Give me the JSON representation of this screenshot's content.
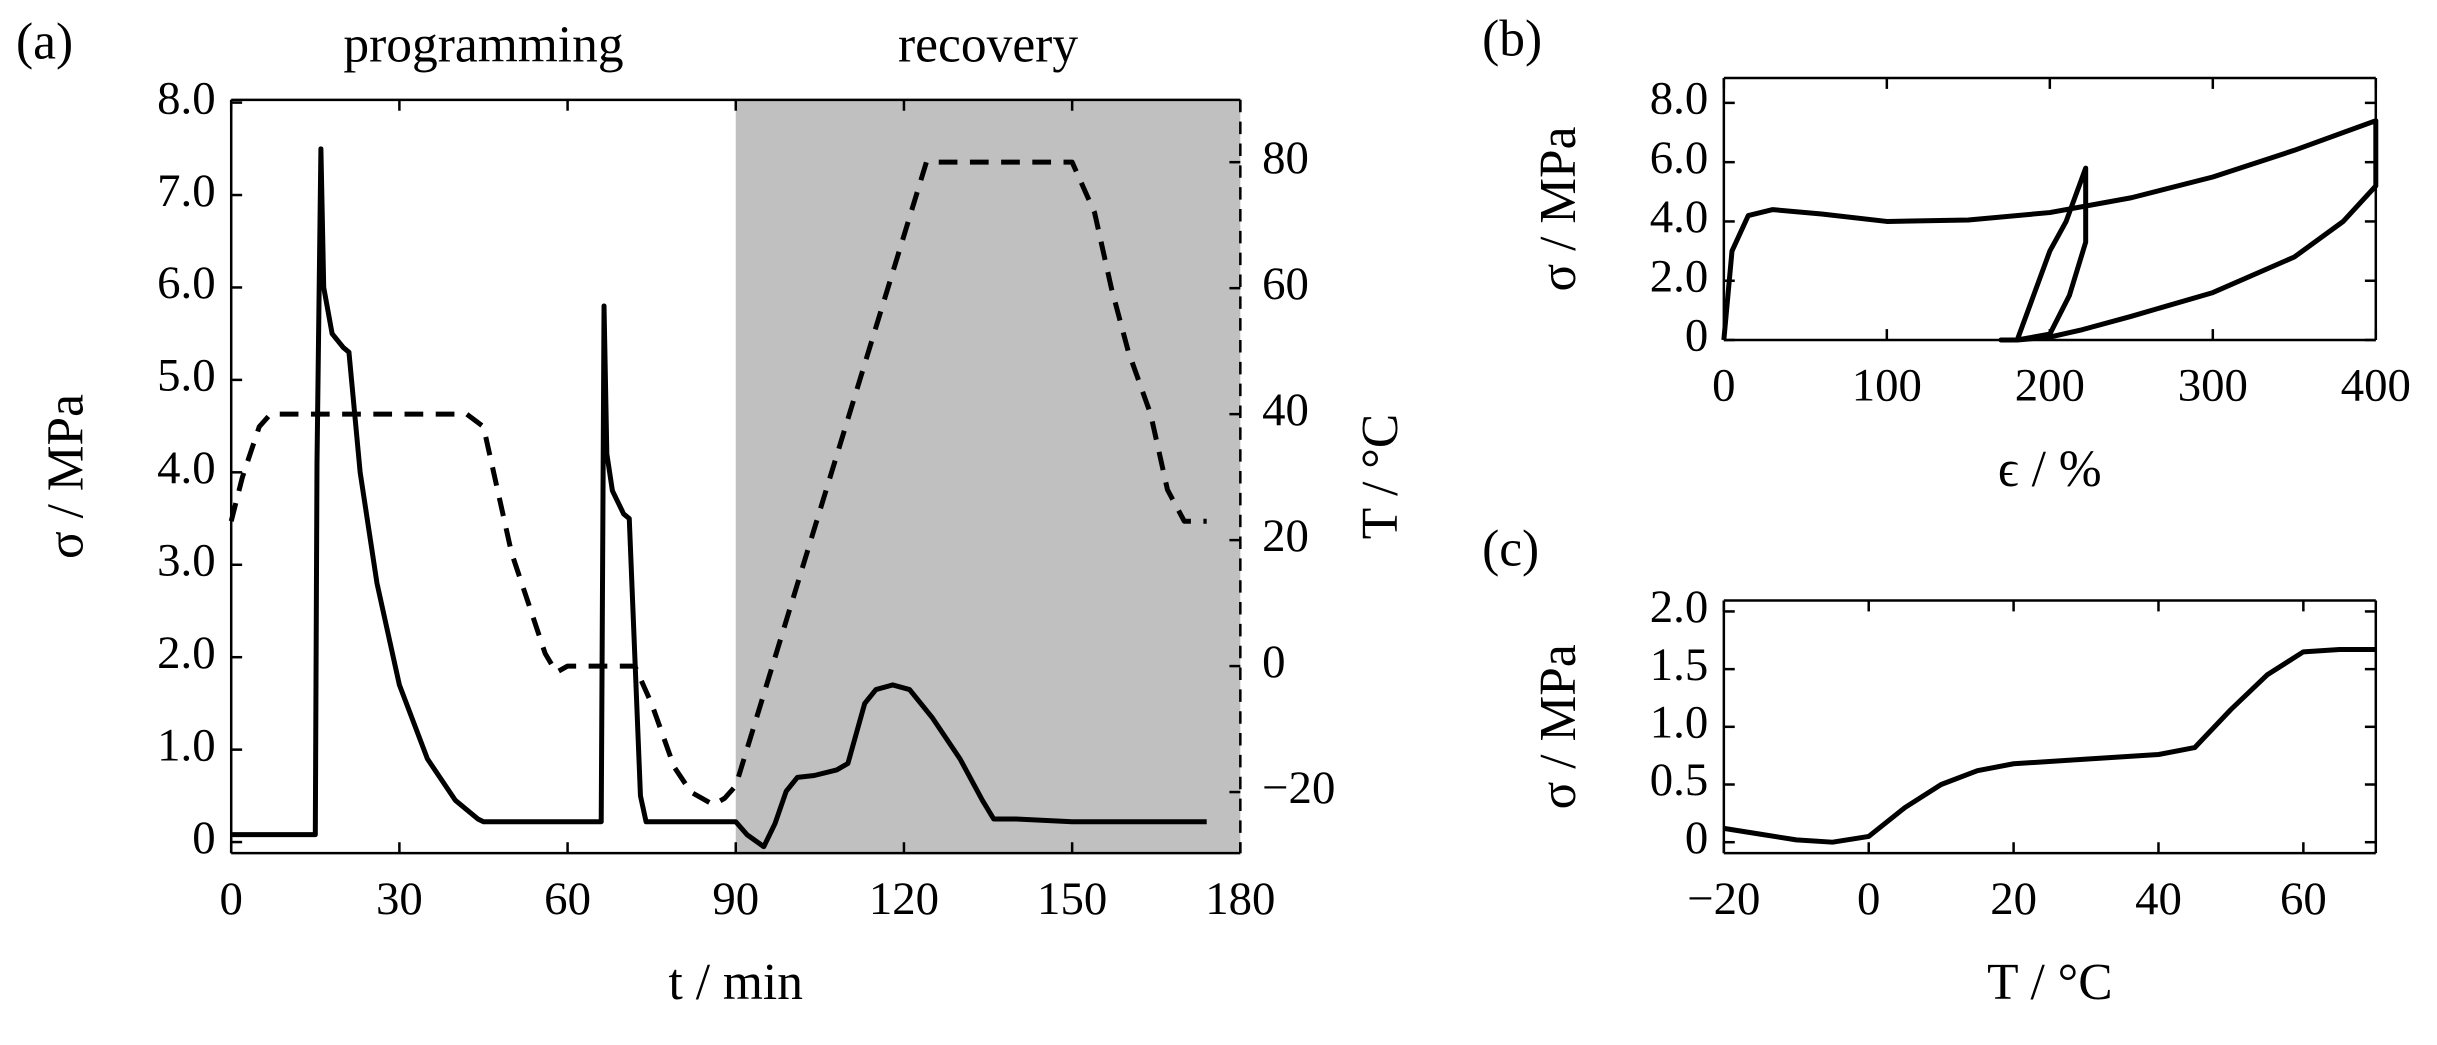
{
  "chart_data": [
    {
      "type": "line",
      "panel_label": "(a)",
      "annotations": [
        "programming",
        "recovery"
      ],
      "shaded_xrange": [
        90,
        180
      ],
      "shade_color": "#c0c0c0",
      "xlabel": "t / min",
      "ylabel": "σ / MPa",
      "y2label": "T / °C",
      "xlim": [
        0,
        180
      ],
      "xticks": [
        0,
        30,
        60,
        90,
        120,
        150,
        180
      ],
      "ylim": [
        -0.12,
        8.03
      ],
      "yticks": [
        0,
        {
          "value": 1,
          "label": "1.0"
        },
        {
          "value": 2,
          "label": "2.0"
        },
        {
          "value": 3,
          "label": "3.0"
        },
        {
          "value": 4,
          "label": "4.0"
        },
        {
          "value": 5,
          "label": "5.0"
        },
        {
          "value": 6,
          "label": "6.0"
        },
        {
          "value": 7,
          "label": "7.0"
        },
        {
          "value": 8,
          "label": "8.0"
        }
      ],
      "y2lim": [
        -29.7,
        89.9
      ],
      "y2ticks": [
        {
          "value": -20,
          "label": "−20"
        },
        0,
        20,
        40,
        60,
        80
      ],
      "series": [
        {
          "color": "#000000",
          "dashed": false,
          "x": [
            0,
            15,
            15.3,
            16,
            16.5,
            18,
            20,
            21,
            23,
            26,
            30,
            35,
            40,
            44,
            45,
            66,
            66.5,
            67,
            68,
            70,
            71,
            72,
            73,
            74,
            90,
            92,
            95,
            97,
            99,
            101,
            104,
            108,
            110,
            113,
            115,
            118,
            121,
            125,
            130,
            134,
            136,
            140,
            150,
            174
          ],
          "values": [
            0.08,
            0.08,
            4.1,
            7.5,
            6.0,
            5.5,
            5.35,
            5.3,
            4.0,
            2.8,
            1.7,
            0.9,
            0.45,
            0.25,
            0.22,
            0.22,
            5.8,
            4.2,
            3.8,
            3.55,
            3.5,
            2.0,
            0.5,
            0.22,
            0.22,
            0.08,
            -0.05,
            0.2,
            0.55,
            0.7,
            0.72,
            0.78,
            0.85,
            1.5,
            1.65,
            1.7,
            1.65,
            1.35,
            0.9,
            0.45,
            0.25,
            0.25,
            0.22,
            0.22
          ]
        },
        {
          "color": "#000000",
          "dashed": true,
          "axis": "y2",
          "x": [
            0,
            2,
            5,
            7,
            42,
            45,
            47,
            50,
            53,
            56,
            58,
            60,
            65,
            72,
            75,
            79,
            82,
            86,
            88,
            90,
            124,
            150,
            154,
            157,
            160,
            164,
            167,
            170,
            174
          ],
          "values": [
            23,
            30,
            38,
            40,
            40,
            38,
            30,
            18,
            10,
            2,
            -1,
            0,
            0,
            0,
            -6,
            -16,
            -20,
            -22,
            -21,
            -19,
            80,
            80,
            72,
            60,
            50,
            40,
            28,
            23,
            23
          ]
        }
      ]
    },
    {
      "type": "line",
      "panel_label": "(b)",
      "xlabel": "ϵ / %",
      "ylabel": "σ / MPa",
      "xlim": [
        0,
        400
      ],
      "xticks": [
        0,
        100,
        200,
        300,
        400
      ],
      "ylim": [
        0,
        8.84
      ],
      "yticks": [
        0,
        {
          "value": 2,
          "label": "2.0"
        },
        {
          "value": 4,
          "label": "4.0"
        },
        {
          "value": 6,
          "label": "6.0"
        },
        {
          "value": 8,
          "label": "8.0"
        }
      ],
      "series": [
        {
          "color": "#000000",
          "dashed": false,
          "x": [
            0,
            5,
            15,
            30,
            60,
            100,
            150,
            200,
            250,
            300,
            350,
            400,
            400,
            380,
            350,
            300,
            250,
            220,
            200,
            180,
            170,
            180,
            190,
            200,
            210,
            222,
            222,
            212,
            200,
            180
          ],
          "values": [
            0,
            3,
            4.2,
            4.4,
            4.25,
            4.0,
            4.05,
            4.3,
            4.8,
            5.5,
            6.4,
            7.4,
            5.2,
            4.0,
            2.8,
            1.6,
            0.8,
            0.35,
            0.1,
            0,
            0,
            0,
            1.5,
            3.0,
            4.0,
            5.8,
            3.3,
            1.5,
            0.2,
            0
          ]
        }
      ]
    },
    {
      "type": "line",
      "panel_label": "(c)",
      "xlabel": "T / °C",
      "ylabel": "σ / MPa",
      "xlim": [
        -20,
        70
      ],
      "xticks": [
        {
          "value": -20,
          "label": "−20"
        },
        0,
        20,
        40,
        60
      ],
      "ylim": [
        -0.095,
        2.095
      ],
      "yticks": [
        0,
        0.5,
        {
          "value": 1,
          "label": "1.0"
        },
        1.5,
        {
          "value": 2,
          "label": "2.0"
        }
      ],
      "series": [
        {
          "color": "#000000",
          "dashed": false,
          "x": [
            -20,
            -15,
            -10,
            -5,
            0,
            5,
            10,
            15,
            20,
            30,
            40,
            45,
            50,
            55,
            60,
            65,
            70
          ],
          "values": [
            0.12,
            0.07,
            0.02,
            0,
            0.05,
            0.3,
            0.5,
            0.62,
            0.68,
            0.72,
            0.76,
            0.82,
            1.15,
            1.45,
            1.65,
            1.67,
            1.67
          ]
        }
      ]
    }
  ]
}
